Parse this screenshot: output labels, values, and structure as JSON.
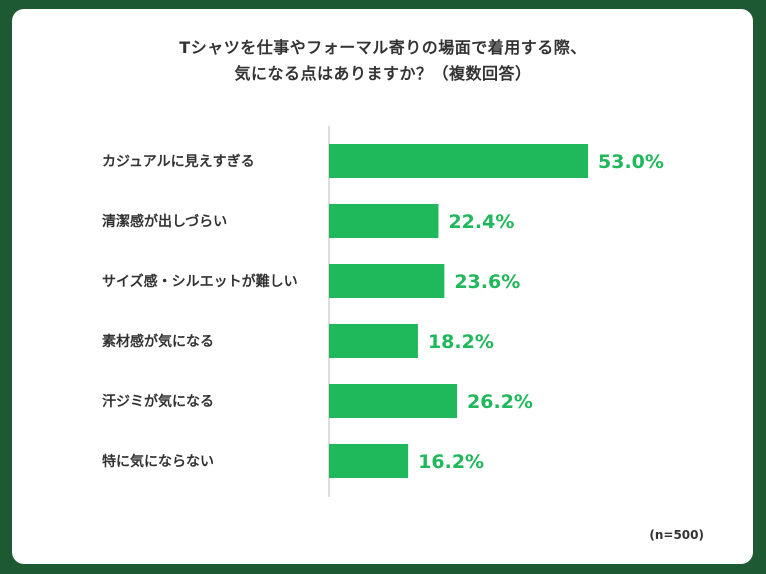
{
  "chart_data": {
    "type": "bar",
    "orientation": "horizontal",
    "title": "Tシャツを仕事やフォーマル寄りの場面で着用する際、気になる点はありますか？（複数回答）",
    "title_lines": [
      "Tシャツを仕事やフォーマル寄りの場面で着用する際、",
      "気になる点はありますか？（複数回答）"
    ],
    "categories": [
      "カジュアルに見えすぎる",
      "清潔感が出しづらい",
      "サイズ感・シルエットが難しい",
      "素材感が気になる",
      "汗ジミが気になる",
      "特に気にならない"
    ],
    "values": [
      53.0,
      22.4,
      23.6,
      18.2,
      26.2,
      16.2
    ],
    "value_labels": [
      "53.0%",
      "22.4%",
      "23.6%",
      "18.2%",
      "26.2%",
      "16.2%"
    ],
    "unit": "%",
    "xlim": [
      0,
      100
    ],
    "grid": false,
    "legend": "none",
    "bar_color": "#1fb85a",
    "value_label_color": "#1fb85a",
    "note": "(n=500)"
  },
  "colors": {
    "frame": "#1d5a33",
    "background": "#ffffff",
    "text": "#333333",
    "axis": "#bbbbbb"
  }
}
